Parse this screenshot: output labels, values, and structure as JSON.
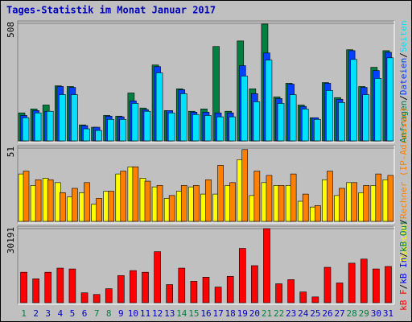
{
  "chart_data": {
    "type": "bar",
    "title": "Tages-Statistik im Monat Januar 2017",
    "separator": "/",
    "categories": [
      "1",
      "2",
      "3",
      "4",
      "5",
      "6",
      "7",
      "8",
      "9",
      "10",
      "11",
      "12",
      "13",
      "14",
      "15",
      "16",
      "17",
      "18",
      "19",
      "20",
      "21",
      "22",
      "23",
      "24",
      "25",
      "26",
      "27",
      "28",
      "29",
      "30",
      "31"
    ],
    "category_colors": [
      "#008040",
      "#0000c0",
      "#0000c0",
      "#0000c0",
      "#0000c0",
      "#0000c0",
      "#008040",
      "#008040",
      "#0000c0",
      "#0000c0",
      "#0000c0",
      "#0000c0",
      "#0000c0",
      "#008040",
      "#008040",
      "#0000c0",
      "#0000c0",
      "#0000c0",
      "#0000c0",
      "#0000c0",
      "#008040",
      "#008040",
      "#0000c0",
      "#0000c0",
      "#0000c0",
      "#0000c0",
      "#0000c0",
      "#008040",
      "#008040",
      "#0000c0",
      "#0000c0"
    ],
    "panels": [
      {
        "ylim": [
          0,
          508
        ],
        "yticks": [
          508
        ],
        "series": [
          {
            "name": "Anfragen",
            "color": "#008040",
            "values": [
              121,
              138,
              155,
              238,
              235,
              69,
              59,
              110,
              107,
              207,
              142,
              328,
              131,
              225,
              128,
              138,
              408,
              128,
              432,
              225,
              505,
              190,
              249,
              155,
              100,
              252,
              187,
              394,
              235,
              318,
              390
            ]
          },
          {
            "name": "Dateien",
            "color": "#0040ff",
            "values": [
              110,
              131,
              128,
              235,
              231,
              66,
              59,
              107,
              104,
              173,
              135,
              321,
              131,
              221,
              124,
              124,
              121,
              121,
              325,
              204,
              380,
              183,
              245,
              149,
              100,
              249,
              180,
              390,
              231,
              304,
              383
            ]
          },
          {
            "name": "Seiten",
            "color": "#00e0ff",
            "values": [
              100,
              121,
              128,
              200,
              200,
              52,
              45,
              93,
              93,
              162,
              128,
              294,
              121,
              204,
              114,
              110,
              104,
              104,
              280,
              169,
              349,
              162,
              200,
              138,
              93,
              218,
              166,
              352,
              200,
              270,
              359
            ]
          }
        ]
      },
      {
        "ylim": [
          0,
          51
        ],
        "yticks": [
          51
        ],
        "series": [
          {
            "name": "Besuche",
            "color": "#ffff00",
            "values": [
              33,
              25,
              30,
              27,
              17,
              20,
              12,
              21,
              33,
              38,
              30,
              24,
              16,
              21,
              24,
              19,
              19,
              25,
              43,
              18,
              27,
              25,
              25,
              14,
              10,
              29,
              18,
              27,
              20,
              25,
              29
            ]
          },
          {
            "name": "Rechner (IP-Adressen)",
            "color": "#ff8000",
            "values": [
              35,
              29,
              29,
              20,
              23,
              27,
              16,
              21,
              35,
              38,
              28,
              25,
              18,
              25,
              25,
              29,
              39,
              27,
              50,
              35,
              32,
              25,
              33,
              19,
              11,
              35,
              23,
              27,
              25,
              33,
              32
            ]
          }
        ]
      },
      {
        "ylim": [
          0,
          30191
        ],
        "yticks": [
          30191
        ],
        "series": [
          {
            "name": "kB F",
            "color": "#ff0000",
            "values": [
              12412,
              9728,
              12412,
              14089,
              13754,
              4025,
              3355,
              5703,
              11070,
              13083,
              12412,
              20798,
              7380,
              14089,
              8722,
              10399,
              6374,
              10735,
              22140,
              15096,
              30191,
              7715,
              9393,
              4361,
              2348,
              14425,
              8051,
              16102,
              17779,
              13754,
              14760
            ]
          }
        ],
        "extra_legend": [
          {
            "name": "kB In",
            "color": "#0000ff"
          },
          {
            "name": "kB Out",
            "color": "#008040"
          }
        ]
      }
    ]
  }
}
